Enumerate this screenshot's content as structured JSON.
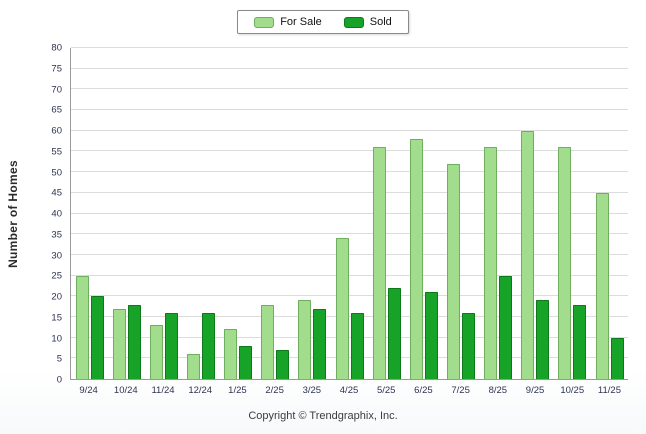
{
  "chart_data": {
    "type": "bar",
    "categories": [
      "9/24",
      "10/24",
      "11/24",
      "12/24",
      "1/25",
      "2/25",
      "3/25",
      "4/25",
      "5/25",
      "6/25",
      "7/25",
      "8/25",
      "9/25",
      "10/25",
      "11/25"
    ],
    "series": [
      {
        "name": "For Sale",
        "color": "#a2dd8e",
        "border_color": "#6fae5f",
        "values": [
          25,
          17,
          13,
          6,
          12,
          18,
          19,
          34,
          56,
          58,
          52,
          56,
          60,
          56,
          45
        ]
      },
      {
        "name": "Sold",
        "color": "#17a327",
        "border_color": "#0d7a1a",
        "values": [
          20,
          18,
          16,
          16,
          8,
          7,
          17,
          16,
          22,
          21,
          16,
          25,
          19,
          18,
          10
        ]
      }
    ],
    "title": "",
    "xlabel": "",
    "ylabel": "Number of Homes",
    "ylim": [
      0,
      80
    ],
    "ytick_step": 5,
    "grid": true,
    "legend_position": "top-center"
  },
  "footer": {
    "copyright": "Copyright © Trendgraphix, Inc."
  }
}
